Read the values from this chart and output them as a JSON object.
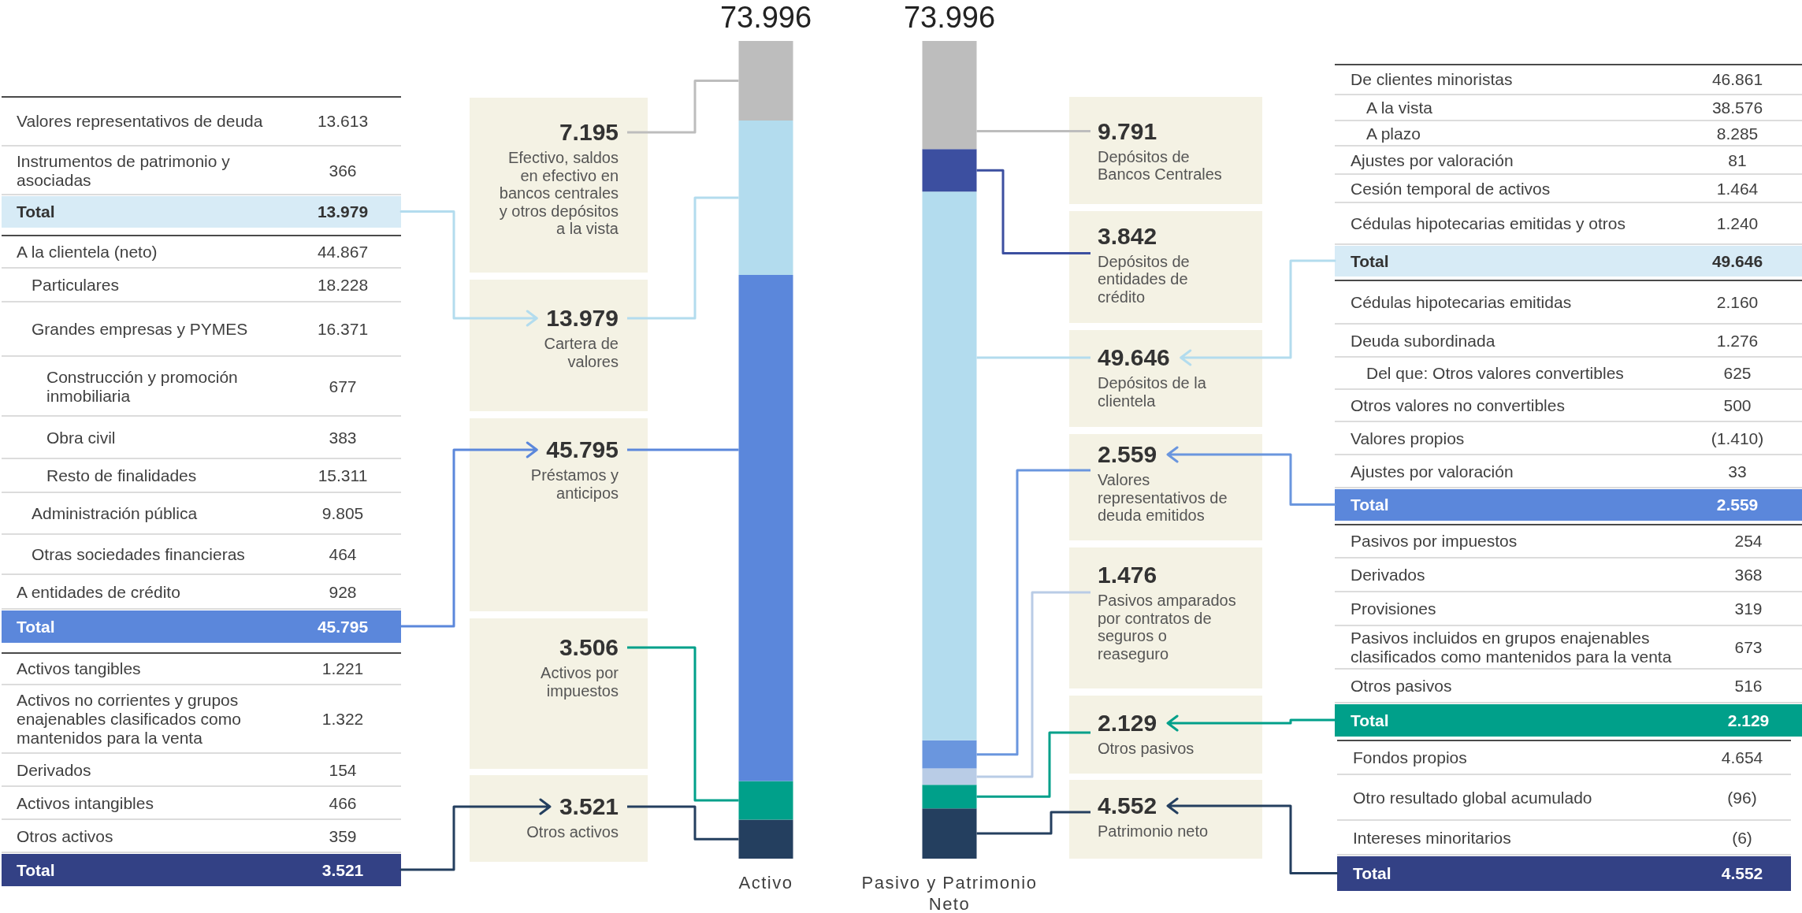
{
  "chart_data": [
    {
      "type": "other",
      "color": "#d7ebf6",
      "annotations": [
        "Valores representativos de deuda",
        "13.613",
        "Instrumentos de patrimonio y asociadas",
        "366",
        "Total",
        "13.979"
      ]
    },
    {
      "type": "other",
      "color": "#5b87db",
      "annotations": [
        "A la clientela (neto)",
        "44.867",
        "Particulares",
        "18.228",
        "Grandes empresas y PYMES",
        "16.371",
        "Construcción y promoción inmobiliaria",
        "677",
        "Obra civil",
        "383",
        "Resto de finalidades",
        "15.311",
        "Administración pública",
        "9.805",
        "Otras sociedades financieras",
        "464",
        "A entidades de crédito",
        "928",
        "Total",
        "45.795"
      ]
    },
    {
      "type": "other",
      "color": "#334185",
      "annotations": [
        "Activos tangibles",
        "1.221",
        "Activos no corrientes y grupos enajenables clasificados como mantenidos para la venta",
        "1.322",
        "Derivados",
        "154",
        "Activos intangibles",
        "466",
        "Otros activos",
        "359",
        "Total",
        "3.521"
      ]
    },
    {
      "type": "bar",
      "stacked": true,
      "categories": [
        "Activo",
        "Pasivo y Patrimonio Neto"
      ],
      "totals": [
        "73.996",
        "73.996"
      ],
      "series": [
        {
          "name": "Otros activos",
          "color": "#243f5f",
          "values": [
            3521,
            null
          ],
          "value_labels": [
            "3.521",
            null
          ]
        },
        {
          "name": "Activos por impuestos",
          "color": "#00a08a",
          "values": [
            3506,
            null
          ],
          "value_labels": [
            "3.506",
            null
          ]
        },
        {
          "name": "Préstamos y anticipos",
          "color": "#5b87db",
          "values": [
            45795,
            null
          ],
          "value_labels": [
            "45.795",
            null
          ]
        },
        {
          "name": "Cartera de valores",
          "color": "#b3dcee",
          "values": [
            13979,
            null
          ],
          "value_labels": [
            "13.979",
            null
          ]
        },
        {
          "name": "Efectivo, saldos en efectivo en bancos centrales y otros depósitos a la vista",
          "color": "#bdbdbd",
          "values": [
            7195,
            null
          ],
          "value_labels": [
            "7.195",
            null
          ]
        },
        {
          "name": "Patrimonio neto",
          "color": "#243f5f",
          "values": [
            null,
            4552
          ],
          "value_labels": [
            null,
            "4.552"
          ]
        },
        {
          "name": "Otros pasivos",
          "color": "#00a08a",
          "values": [
            null,
            2129
          ],
          "value_labels": [
            null,
            "2.129"
          ]
        },
        {
          "name": "Pasivos amparados por contratos de seguros o reaseguro",
          "color": "#b9cce6",
          "values": [
            null,
            1476
          ],
          "value_labels": [
            null,
            "1.476"
          ]
        },
        {
          "name": "Valores representativos de deuda emitidos",
          "color": "#6a96de",
          "values": [
            null,
            2559
          ],
          "value_labels": [
            null,
            "2.559"
          ]
        },
        {
          "name": "Depósitos de la clientela",
          "color": "#b3dcee",
          "values": [
            null,
            49646
          ],
          "value_labels": [
            null,
            "49.646"
          ]
        },
        {
          "name": "Depósitos de entidades de crédito",
          "color": "#3c4fa0",
          "values": [
            null,
            3842
          ],
          "value_labels": [
            null,
            "3.842"
          ]
        },
        {
          "name": "Depósitos de Bancos Centrales",
          "color": "#bdbdbd",
          "values": [
            null,
            9791
          ],
          "value_labels": [
            null,
            "9.791"
          ]
        }
      ]
    },
    {
      "type": "other",
      "color": "#d7ebf6",
      "annotations": [
        "De clientes minoristas",
        "46.861",
        "A la vista",
        "38.576",
        "A plazo",
        "8.285",
        "Ajustes por valoración",
        "81",
        "Cesión temporal de activos",
        "1.464",
        "Cédulas hipotecarias emitidas y otros",
        "1.240",
        "Total",
        "49.646"
      ]
    },
    {
      "type": "other",
      "color": "#5b87db",
      "annotations": [
        "Cédulas hipotecarias emitidas",
        "2.160",
        "Deuda subordinada",
        "1.276",
        "Del que: Otros valores convertibles",
        "625",
        "Otros valores no convertibles",
        "500",
        "Valores propios",
        "(1.410)",
        "Ajustes por valoración",
        "33",
        "Total",
        "2.559"
      ]
    },
    {
      "type": "other",
      "color": "#00a08a",
      "annotations": [
        "Pasivos por impuestos",
        "254",
        "Derivados",
        "368",
        "Provisiones",
        "319",
        "Pasivos incluidos en grupos enajenables clasificados como mantenidos para la venta",
        "673",
        "Otros pasivos",
        "516",
        "Total",
        "2.129"
      ]
    },
    {
      "type": "other",
      "color": "#334185",
      "annotations": [
        "Fondos propios",
        "4.654",
        "Otro resultado global acumulado",
        "(96)",
        "Intereses minoritarios",
        "(6)",
        "Total",
        "4.552"
      ]
    }
  ]
}
